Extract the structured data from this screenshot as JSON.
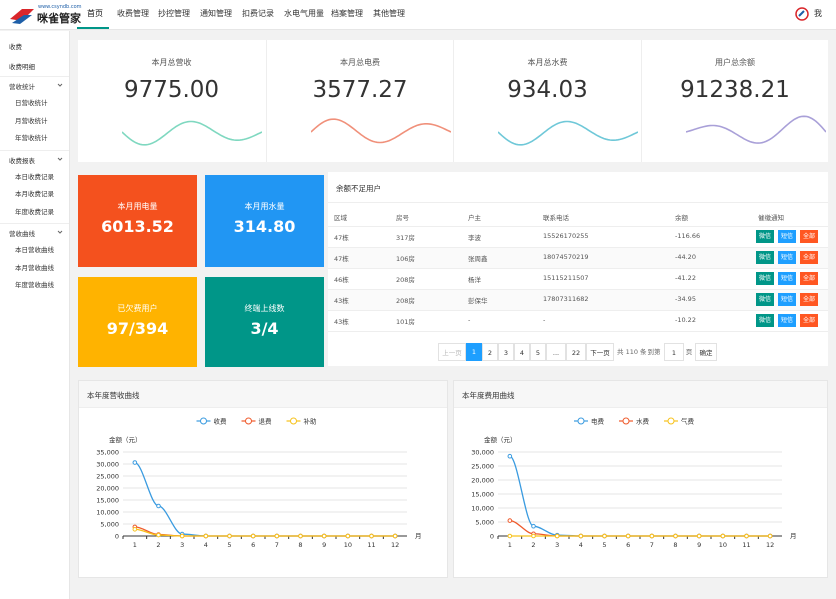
{
  "header": {
    "logo_url": "www.csyndb.com",
    "logo_name": "咪雀管家",
    "nav": [
      "首页",
      "收费管理",
      "抄控管理",
      "通知管理",
      "扣费记录",
      "水电气用量",
      "档案管理",
      "其他管理"
    ],
    "user": "我"
  },
  "sidebar": {
    "top": [
      "收费",
      "收费明细"
    ],
    "groups": [
      {
        "title": "营收统计",
        "items": [
          "日营收统计",
          "月营收统计",
          "年营收统计"
        ]
      },
      {
        "title": "收费报表",
        "items": [
          "本日收费记录",
          "本月收费记录",
          "年度收费记录"
        ]
      },
      {
        "title": "营收曲线",
        "items": [
          "本日营收曲线",
          "本月营收曲线",
          "年度营收曲线"
        ]
      }
    ]
  },
  "stats": [
    {
      "label": "本月总营收",
      "value": "9775.00"
    },
    {
      "label": "本月总电费",
      "value": "3577.27"
    },
    {
      "label": "本月总水费",
      "value": "934.03"
    },
    {
      "label": "用户总余额",
      "value": "91238.21"
    }
  ],
  "tiles": [
    {
      "label": "本月用电量",
      "value": "6013.52",
      "color": "#f4511e"
    },
    {
      "label": "本月用水量",
      "value": "314.80",
      "color": "#2196f3"
    },
    {
      "label": "已欠费用户",
      "value": "97/394",
      "color": "#ffb300"
    },
    {
      "label": "终端上线数",
      "value": "3/4",
      "color": "#009688"
    }
  ],
  "table": {
    "title": "余额不足用户",
    "headers": [
      "区域",
      "房号",
      "户主",
      "联系电话",
      "余额",
      "催缴通知"
    ],
    "rows": [
      [
        "47栋",
        "317房",
        "李波",
        "15526170255",
        "-116.66"
      ],
      [
        "47栋",
        "106房",
        "张周鑫",
        "18074570219",
        "-44.20"
      ],
      [
        "46栋",
        "208房",
        "杨洋",
        "15115211507",
        "-41.22"
      ],
      [
        "43栋",
        "208房",
        "彭保华",
        "17807311682",
        "-34.95"
      ],
      [
        "43栋",
        "101房",
        "-",
        "-",
        "-10.22"
      ]
    ],
    "actions": [
      "微信",
      "短信",
      "全部"
    ]
  },
  "pagination": {
    "prev": "上一页",
    "pages": [
      "1",
      "2",
      "3",
      "4",
      "5",
      "...",
      "22"
    ],
    "next": "下一页",
    "total": "共 110 条",
    "goto": "到第",
    "page_input": "1",
    "page_unit": "页",
    "confirm": "确定"
  },
  "chart_data": [
    {
      "type": "line",
      "title": "本年度营收曲线",
      "ylabel": "金额（元）",
      "xlabel": "月",
      "categories": [
        "1",
        "2",
        "3",
        "4",
        "5",
        "6",
        "7",
        "8",
        "9",
        "10",
        "11",
        "12"
      ],
      "series": [
        {
          "name": "收费",
          "color": "#3a9be0",
          "values": [
            30600,
            12500,
            800,
            0,
            0,
            0,
            0,
            0,
            0,
            0,
            0,
            0
          ]
        },
        {
          "name": "退费",
          "color": "#ef5a2b",
          "values": [
            3800,
            600,
            0,
            0,
            0,
            0,
            0,
            0,
            0,
            0,
            0,
            0
          ]
        },
        {
          "name": "补助",
          "color": "#f7c21b",
          "values": [
            2800,
            400,
            0,
            0,
            0,
            0,
            0,
            0,
            0,
            0,
            0,
            0
          ]
        }
      ],
      "ylim": [
        0,
        35000
      ],
      "yticks": [
        0,
        {
          "value": 5000,
          "label": "5,000"
        },
        {
          "value": 10000,
          "label": "10,000"
        },
        {
          "value": 15000,
          "label": "15,000"
        },
        {
          "value": 20000,
          "label": "20,000"
        },
        {
          "value": 25000,
          "label": "25,000"
        },
        {
          "value": 30000,
          "label": "30,000"
        },
        {
          "value": 35000,
          "label": "35,000"
        }
      ],
      "grid": true
    },
    {
      "type": "line",
      "title": "本年度费用曲线",
      "ylabel": "金额（元）",
      "xlabel": "月",
      "categories": [
        "1",
        "2",
        "3",
        "4",
        "5",
        "6",
        "7",
        "8",
        "9",
        "10",
        "11",
        "12"
      ],
      "series": [
        {
          "name": "电费",
          "color": "#3a9be0",
          "values": [
            28500,
            3500,
            300,
            0,
            0,
            0,
            0,
            0,
            0,
            0,
            0,
            0
          ]
        },
        {
          "name": "水费",
          "color": "#ef5a2b",
          "values": [
            5500,
            800,
            0,
            0,
            0,
            0,
            0,
            0,
            0,
            0,
            0,
            0
          ]
        },
        {
          "name": "气费",
          "color": "#f7c21b",
          "values": [
            0,
            0,
            0,
            0,
            0,
            0,
            0,
            0,
            0,
            0,
            0,
            0
          ]
        }
      ],
      "ylim": [
        0,
        30000
      ],
      "yticks": [
        0,
        {
          "value": 5000,
          "label": "5,000"
        },
        {
          "value": 10000,
          "label": "10,000"
        },
        {
          "value": 15000,
          "label": "15,000"
        },
        {
          "value": 20000,
          "label": "20,000"
        },
        {
          "value": 25000,
          "label": "25,000"
        },
        {
          "value": 30000,
          "label": "30,000"
        }
      ],
      "grid": true
    }
  ]
}
